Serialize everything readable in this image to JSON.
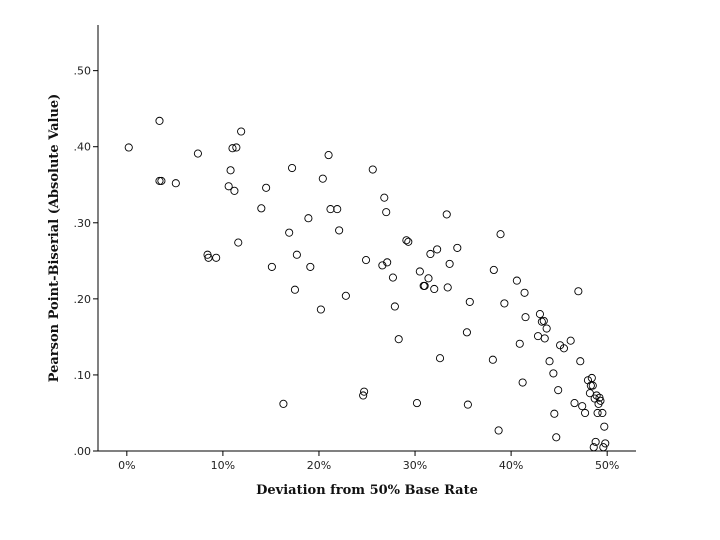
{
  "chart_data": {
    "type": "scatter",
    "title": "",
    "xlabel": "Deviation from 50% Base Rate",
    "ylabel": "Pearson Point-Biserial (Absolute Value)",
    "xlim": [
      -0.03,
      0.53
    ],
    "ylim": [
      0,
      0.56
    ],
    "x_ticks": [
      0,
      0.1,
      0.2,
      0.3,
      0.4,
      0.5
    ],
    "x_tick_labels": [
      "0%",
      "10%",
      "20%",
      "30%",
      "40%",
      "50%"
    ],
    "y_ticks": [
      0,
      0.1,
      0.2,
      0.3,
      0.4,
      0.5
    ],
    "y_tick_labels": [
      ".00",
      ".10",
      ".20",
      ".30",
      ".40",
      ".50"
    ],
    "grid": false,
    "legend": "none",
    "marker": "open-circle",
    "marker_color": "#000000",
    "points": [
      [
        0.002,
        0.399
      ],
      [
        0.034,
        0.434
      ],
      [
        0.034,
        0.355
      ],
      [
        0.036,
        0.355
      ],
      [
        0.051,
        0.352
      ],
      [
        0.074,
        0.391
      ],
      [
        0.084,
        0.258
      ],
      [
        0.085,
        0.254
      ],
      [
        0.093,
        0.254
      ],
      [
        0.106,
        0.348
      ],
      [
        0.108,
        0.369
      ],
      [
        0.11,
        0.398
      ],
      [
        0.112,
        0.342
      ],
      [
        0.114,
        0.399
      ],
      [
        0.116,
        0.274
      ],
      [
        0.119,
        0.42
      ],
      [
        0.14,
        0.319
      ],
      [
        0.145,
        0.346
      ],
      [
        0.151,
        0.242
      ],
      [
        0.163,
        0.062
      ],
      [
        0.169,
        0.287
      ],
      [
        0.172,
        0.372
      ],
      [
        0.175,
        0.212
      ],
      [
        0.177,
        0.258
      ],
      [
        0.189,
        0.306
      ],
      [
        0.191,
        0.242
      ],
      [
        0.202,
        0.186
      ],
      [
        0.204,
        0.358
      ],
      [
        0.21,
        0.389
      ],
      [
        0.212,
        0.318
      ],
      [
        0.219,
        0.318
      ],
      [
        0.221,
        0.29
      ],
      [
        0.228,
        0.204
      ],
      [
        0.246,
        0.073
      ],
      [
        0.247,
        0.078
      ],
      [
        0.249,
        0.251
      ],
      [
        0.256,
        0.37
      ],
      [
        0.266,
        0.244
      ],
      [
        0.268,
        0.333
      ],
      [
        0.27,
        0.314
      ],
      [
        0.271,
        0.248
      ],
      [
        0.277,
        0.228
      ],
      [
        0.279,
        0.19
      ],
      [
        0.283,
        0.147
      ],
      [
        0.291,
        0.277
      ],
      [
        0.293,
        0.275
      ],
      [
        0.302,
        0.063
      ],
      [
        0.305,
        0.236
      ],
      [
        0.309,
        0.217
      ],
      [
        0.31,
        0.217
      ],
      [
        0.314,
        0.227
      ],
      [
        0.316,
        0.259
      ],
      [
        0.32,
        0.213
      ],
      [
        0.323,
        0.265
      ],
      [
        0.326,
        0.122
      ],
      [
        0.333,
        0.311
      ],
      [
        0.334,
        0.215
      ],
      [
        0.336,
        0.246
      ],
      [
        0.344,
        0.267
      ],
      [
        0.354,
        0.156
      ],
      [
        0.355,
        0.061
      ],
      [
        0.357,
        0.196
      ],
      [
        0.381,
        0.12
      ],
      [
        0.382,
        0.238
      ],
      [
        0.387,
        0.027
      ],
      [
        0.389,
        0.285
      ],
      [
        0.393,
        0.194
      ],
      [
        0.406,
        0.224
      ],
      [
        0.409,
        0.141
      ],
      [
        0.412,
        0.09
      ],
      [
        0.414,
        0.208
      ],
      [
        0.415,
        0.176
      ],
      [
        0.428,
        0.151
      ],
      [
        0.43,
        0.18
      ],
      [
        0.432,
        0.17
      ],
      [
        0.434,
        0.171
      ],
      [
        0.435,
        0.148
      ],
      [
        0.437,
        0.161
      ],
      [
        0.44,
        0.118
      ],
      [
        0.444,
        0.102
      ],
      [
        0.445,
        0.049
      ],
      [
        0.447,
        0.018
      ],
      [
        0.449,
        0.08
      ],
      [
        0.451,
        0.139
      ],
      [
        0.455,
        0.135
      ],
      [
        0.462,
        0.145
      ],
      [
        0.466,
        0.063
      ],
      [
        0.47,
        0.21
      ],
      [
        0.472,
        0.118
      ],
      [
        0.474,
        0.059
      ],
      [
        0.477,
        0.05
      ],
      [
        0.48,
        0.093
      ],
      [
        0.482,
        0.076
      ],
      [
        0.483,
        0.086
      ],
      [
        0.484,
        0.096
      ],
      [
        0.485,
        0.086
      ],
      [
        0.486,
        0.005
      ],
      [
        0.487,
        0.069
      ],
      [
        0.488,
        0.012
      ],
      [
        0.489,
        0.073
      ],
      [
        0.49,
        0.05
      ],
      [
        0.491,
        0.062
      ],
      [
        0.492,
        0.07
      ],
      [
        0.493,
        0.066
      ],
      [
        0.495,
        0.05
      ],
      [
        0.496,
        0.005
      ],
      [
        0.497,
        0.032
      ],
      [
        0.498,
        0.01
      ]
    ]
  }
}
